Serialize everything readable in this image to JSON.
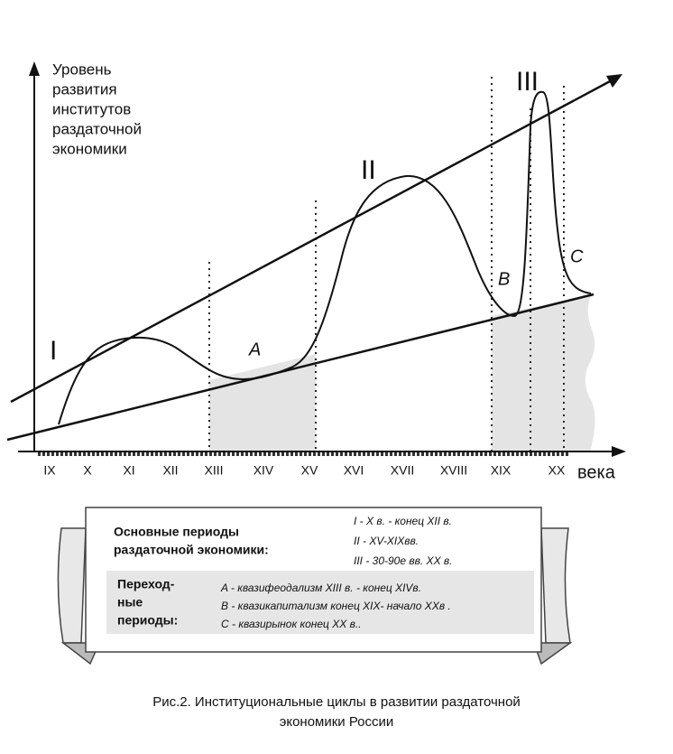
{
  "y_axis_label": [
    "Уровень",
    "развития",
    "институтов",
    "раздаточной",
    "экономики"
  ],
  "x_axis_label": "века",
  "centuries": [
    "IX",
    "X",
    "XI",
    "XII",
    "XIII",
    "XIV",
    "XV",
    "XVI",
    "XVII",
    "XVIII",
    "XIX",
    "XX"
  ],
  "phase_labels": [
    "I",
    "II",
    "III"
  ],
  "transition_labels": [
    "A",
    "B",
    "C"
  ],
  "legend": {
    "main_title": [
      "Основные периоды",
      "раздаточной экономики:"
    ],
    "main_items": [
      "I  - X в. - конец XII в.",
      "II  - XV-XIXвв.",
      "III - 30-90е вв.  XX в."
    ],
    "transition_title": [
      "Переход-",
      "ные",
      "периоды:"
    ],
    "transition_items": [
      "A  - квазифеодализм   XIII в. - конец XIVв.",
      "B  - квазикапитализм конец XIX- начало XXв .",
      "C  - квазирынок  конец XX в.."
    ]
  },
  "caption": [
    "Рис.2. Институциональные циклы в развитии  раздаточной",
    "экономики России"
  ]
}
